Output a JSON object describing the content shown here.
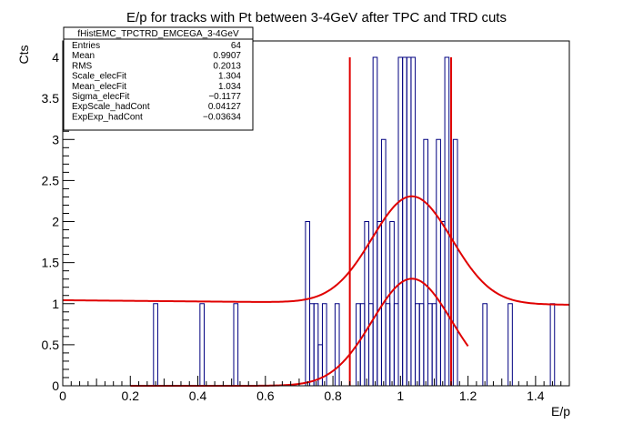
{
  "chart_data": {
    "type": "histogram",
    "title": "E/p for tracks with Pt between 3-4GeV after TPC and TRD cuts",
    "xlabel": "E/p",
    "ylabel": "Cts",
    "xlim": [
      0,
      1.5
    ],
    "ylim": [
      0,
      4.2
    ],
    "x_ticks": [
      0,
      0.2,
      0.4,
      0.6,
      0.8,
      1,
      1.2,
      1.4
    ],
    "x_tick_labels": [
      "0",
      "0.2",
      "0.4",
      "0.6",
      "0.8",
      "1",
      "1.2",
      "1.4"
    ],
    "y_ticks": [
      0,
      0.5,
      1,
      1.5,
      2,
      2.5,
      3,
      3.5,
      4
    ],
    "y_tick_labels": [
      "0",
      "0.5",
      "1",
      "1.5",
      "2",
      "2.5",
      "3",
      "3.5",
      "4"
    ],
    "histogram": {
      "bin_width": 0.0125,
      "nonzero_bins": [
        {
          "x": 0.275,
          "count": 1
        },
        {
          "x": 0.4125,
          "count": 1
        },
        {
          "x": 0.5125,
          "count": 1
        },
        {
          "x": 0.725,
          "count": 2
        },
        {
          "x": 0.7375,
          "count": 1
        },
        {
          "x": 0.75,
          "count": 1
        },
        {
          "x": 0.7625,
          "count": 0.5
        },
        {
          "x": 0.775,
          "count": 1
        },
        {
          "x": 0.8125,
          "count": 1
        },
        {
          "x": 0.875,
          "count": 1
        },
        {
          "x": 0.8875,
          "count": 1
        },
        {
          "x": 0.9,
          "count": 2
        },
        {
          "x": 0.9125,
          "count": 1
        },
        {
          "x": 0.925,
          "count": 4
        },
        {
          "x": 0.9375,
          "count": 2
        },
        {
          "x": 0.95,
          "count": 3
        },
        {
          "x": 0.9625,
          "count": 1
        },
        {
          "x": 0.975,
          "count": 2
        },
        {
          "x": 0.9875,
          "count": 1
        },
        {
          "x": 1.0,
          "count": 4
        },
        {
          "x": 1.0125,
          "count": 4
        },
        {
          "x": 1.025,
          "count": 4
        },
        {
          "x": 1.0375,
          "count": 4
        },
        {
          "x": 1.05,
          "count": 1
        },
        {
          "x": 1.0625,
          "count": 1
        },
        {
          "x": 1.075,
          "count": 3
        },
        {
          "x": 1.0875,
          "count": 1
        },
        {
          "x": 1.1,
          "count": 1
        },
        {
          "x": 1.1125,
          "count": 3
        },
        {
          "x": 1.125,
          "count": 2
        },
        {
          "x": 1.1375,
          "count": 4
        },
        {
          "x": 1.1625,
          "count": 3
        },
        {
          "x": 1.25,
          "count": 1
        },
        {
          "x": 1.325,
          "count": 1
        },
        {
          "x": 1.45,
          "count": 1
        }
      ]
    },
    "fit": {
      "scale_elec": 1.304,
      "mean_elec": 1.034,
      "sigma_elec": 0.1177,
      "scale_had": 0.04127,
      "exp_had": -0.03634,
      "total_range": [
        0.0,
        1.5
      ],
      "elec_range": [
        0.2,
        1.2
      ]
    },
    "cut_lines": [
      0.85,
      1.15
    ],
    "stats_box": {
      "title": "fHistEMC_TPCTRD_EMCEGA_3-4GeV",
      "rows": [
        {
          "label": "Entries",
          "value": "64"
        },
        {
          "label": "Mean",
          "value": "0.9907"
        },
        {
          "label": "RMS",
          "value": "0.2013"
        },
        {
          "label": "Scale_elecFit",
          "value": "1.304"
        },
        {
          "label": "Mean_elecFit",
          "value": "1.034"
        },
        {
          "label": "Sigma_elecFit",
          "value": "−0.1177"
        },
        {
          "label": "ExpScale_hadCont",
          "value": "0.04127"
        },
        {
          "label": "ExpExp_hadCont",
          "value": "−0.03634"
        }
      ]
    },
    "colors": {
      "histogram": "#000080",
      "fit": "#e00000",
      "cut": "#e00000",
      "axis": "#000000"
    }
  }
}
